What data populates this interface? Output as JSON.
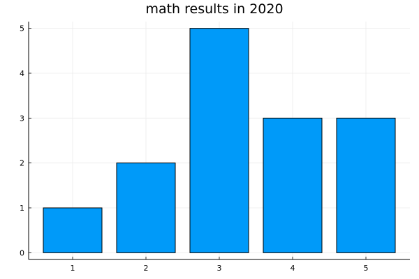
{
  "chart_data": {
    "type": "bar",
    "title": "math results in 2020",
    "xlabel": "",
    "ylabel": "",
    "categories": [
      "1",
      "2",
      "3",
      "4",
      "5"
    ],
    "values": [
      1,
      2,
      5,
      3,
      3
    ],
    "ylim": [
      -0.15,
      5.15
    ],
    "yticks": [
      "0",
      "1",
      "2",
      "3",
      "4",
      "5"
    ],
    "grid": true,
    "legend": "none",
    "bar_color": "#009AF9",
    "bar_edge_color": "#000000",
    "grid_color": "#ebebeb",
    "axis_color": "#000000"
  }
}
